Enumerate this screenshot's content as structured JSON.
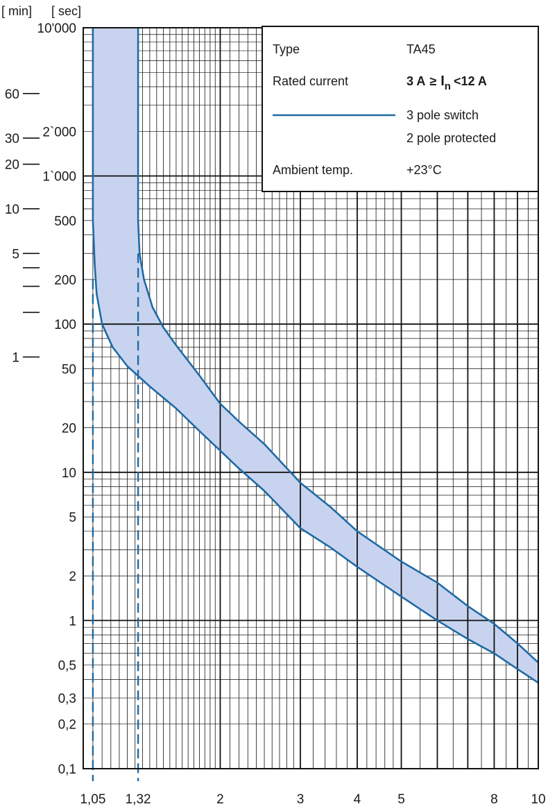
{
  "chart_data": {
    "type": "area",
    "title": "",
    "xlabel": "",
    "ylabel": "",
    "x_scale": "log",
    "y_scale": "log",
    "xlim": [
      1.0,
      10
    ],
    "ylim": [
      0.1,
      10000
    ],
    "grid": true,
    "legend_position": "top-right",
    "units": {
      "minutes": "[ min]",
      "seconds": "[ sec]"
    },
    "y_ticks_sec": [
      {
        "v": 10000,
        "label": "10'000"
      },
      {
        "v": 2000,
        "label": "2`000"
      },
      {
        "v": 1000,
        "label": "1`000"
      },
      {
        "v": 500,
        "label": "500"
      },
      {
        "v": 200,
        "label": "200"
      },
      {
        "v": 100,
        "label": "100"
      },
      {
        "v": 50,
        "label": "50"
      },
      {
        "v": 20,
        "label": "20"
      },
      {
        "v": 10,
        "label": "10"
      },
      {
        "v": 5,
        "label": "5"
      },
      {
        "v": 2,
        "label": "2"
      },
      {
        "v": 1,
        "label": "1"
      },
      {
        "v": 0.5,
        "label": "0,5"
      },
      {
        "v": 0.3,
        "label": "0,3"
      },
      {
        "v": 0.2,
        "label": "0,2"
      },
      {
        "v": 0.1,
        "label": "0,1"
      }
    ],
    "y_ticks_min": [
      {
        "v": 3600,
        "label": "60"
      },
      {
        "v": 1800,
        "label": "30"
      },
      {
        "v": 1200,
        "label": "20"
      },
      {
        "v": 600,
        "label": "10"
      },
      {
        "v": 300,
        "label": "5"
      },
      {
        "v": 240,
        "label": ""
      },
      {
        "v": 180,
        "label": ""
      },
      {
        "v": 120,
        "label": ""
      },
      {
        "v": 60,
        "label": "1"
      }
    ],
    "x_ticks": [
      {
        "v": 1.05,
        "label": "1,05"
      },
      {
        "v": 1.32,
        "label": "1,32"
      },
      {
        "v": 2,
        "label": "2"
      },
      {
        "v": 3,
        "label": "3"
      },
      {
        "v": 4,
        "label": "4"
      },
      {
        "v": 5,
        "label": "5"
      },
      {
        "v": 8,
        "label": "8"
      },
      {
        "v": 10,
        "label": "10"
      }
    ],
    "dashed_lines_x": [
      1.05,
      1.32
    ],
    "series": [
      {
        "name": "lower",
        "points": [
          [
            1.05,
            10000
          ],
          [
            1.05,
            2000
          ],
          [
            1.05,
            500
          ],
          [
            1.06,
            250
          ],
          [
            1.07,
            160
          ],
          [
            1.1,
            100
          ],
          [
            1.16,
            70
          ],
          [
            1.25,
            52
          ],
          [
            1.4,
            38
          ],
          [
            1.6,
            27
          ],
          [
            1.8,
            19
          ],
          [
            2.0,
            14
          ],
          [
            2.2,
            10.6
          ],
          [
            2.5,
            7.5
          ],
          [
            3.0,
            4.2
          ],
          [
            3.5,
            3.1
          ],
          [
            4.0,
            2.3
          ],
          [
            5.0,
            1.45
          ],
          [
            6.0,
            1.0
          ],
          [
            7.0,
            0.75
          ],
          [
            8.0,
            0.6
          ],
          [
            9.0,
            0.47
          ],
          [
            10.0,
            0.38
          ]
        ]
      },
      {
        "name": "upper",
        "points": [
          [
            1.32,
            10000
          ],
          [
            1.32,
            2000
          ],
          [
            1.32,
            500
          ],
          [
            1.33,
            300
          ],
          [
            1.36,
            200
          ],
          [
            1.42,
            130
          ],
          [
            1.5,
            95
          ],
          [
            1.6,
            72
          ],
          [
            1.8,
            45
          ],
          [
            2.0,
            29
          ],
          [
            2.2,
            22
          ],
          [
            2.5,
            15.5
          ],
          [
            3.0,
            8.5
          ],
          [
            3.5,
            5.8
          ],
          [
            4.0,
            4.0
          ],
          [
            5.0,
            2.5
          ],
          [
            6.0,
            1.8
          ],
          [
            7.0,
            1.25
          ],
          [
            8.0,
            0.95
          ],
          [
            9.0,
            0.7
          ],
          [
            10.0,
            0.52
          ]
        ]
      }
    ]
  },
  "legend": {
    "type_label": "Type",
    "type_value": "TA45",
    "rated_label": "Rated current",
    "rated_prefix": "3 A",
    "rated_ge": "≥",
    "rated_i": "I",
    "rated_sub": "n",
    "rated_suffix": "<12 A",
    "line1": "3 pole switch",
    "line2": "2 pole protected",
    "ambient_label": "Ambient temp.",
    "ambient_value": "+23°C"
  },
  "colors": {
    "curve": "#1f6aa5",
    "band": "#c8d4ef",
    "grid": "#111111"
  }
}
